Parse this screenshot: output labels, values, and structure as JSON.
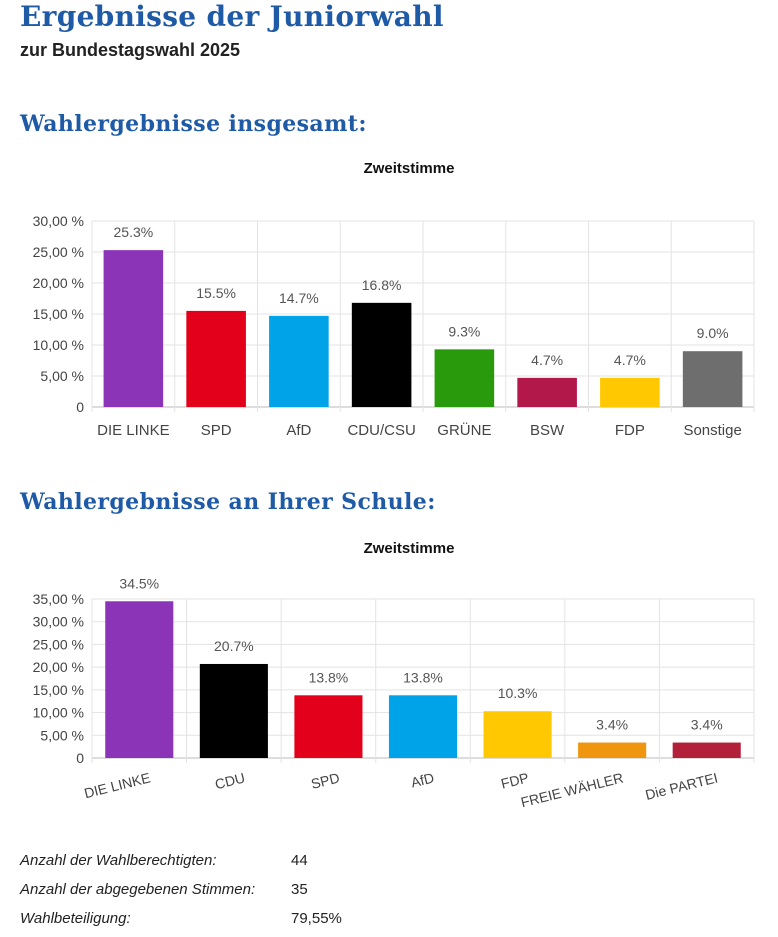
{
  "title": "Ergebnisse der Juniorwahl",
  "subtitle": "zur Bundestagswahl 2025",
  "sections": [
    {
      "heading": "Wahlergebnisse insgesamt:"
    },
    {
      "heading": "Wahlergebnisse an Ihrer Schule:"
    }
  ],
  "chart_data": [
    {
      "type": "bar",
      "title": "Zweitstimme",
      "categories": [
        "DIE LINKE",
        "SPD",
        "AfD",
        "CDU/CSU",
        "GRÜNE",
        "BSW",
        "FDP",
        "Sonstige"
      ],
      "values": [
        25.3,
        15.5,
        14.7,
        16.8,
        9.3,
        4.7,
        4.7,
        9.0
      ],
      "value_labels": [
        "25.3%",
        "15.5%",
        "14.7%",
        "16.8%",
        "9.3%",
        "4.7%",
        "4.7%",
        "9.0%"
      ],
      "colors": [
        "#8b34b8",
        "#e3001b",
        "#00a2e8",
        "#000000",
        "#2a9a0d",
        "#b3184a",
        "#ffc800",
        "#6e6e6e"
      ],
      "yticks": [
        0,
        5,
        10,
        15,
        20,
        25,
        30
      ],
      "ytick_labels": [
        "0",
        "5,00 %",
        "10,00 %",
        "15,00 %",
        "20,00 %",
        "25,00 %",
        "30,00 %"
      ],
      "ylim": [
        0,
        30
      ],
      "grid": true,
      "xlabels_rotated": false
    },
    {
      "type": "bar",
      "title": "Zweitstimme",
      "categories": [
        "DIE LINKE",
        "CDU",
        "SPD",
        "AfD",
        "FDP",
        "FREIE WÄHLER",
        "Die PARTEI"
      ],
      "values": [
        34.5,
        20.7,
        13.8,
        13.8,
        10.3,
        3.4,
        3.4
      ],
      "value_labels": [
        "34.5%",
        "20.7%",
        "13.8%",
        "13.8%",
        "10.3%",
        "3.4%",
        "3.4%"
      ],
      "colors": [
        "#8b34b8",
        "#000000",
        "#e3001b",
        "#00a2e8",
        "#ffc800",
        "#f0960e",
        "#b3203a"
      ],
      "yticks": [
        0,
        5,
        10,
        15,
        20,
        25,
        30,
        35
      ],
      "ytick_labels": [
        "0",
        "5,00 %",
        "10,00 %",
        "15,00 %",
        "20,00 %",
        "25,00 %",
        "30,00 %",
        "35,00 %"
      ],
      "ylim": [
        0,
        35
      ],
      "grid": true,
      "xlabels_rotated": true
    }
  ],
  "stats": [
    {
      "label": "Anzahl der Wahlberechtigten:",
      "value": "44"
    },
    {
      "label": "Anzahl der abgegebenen Stimmen:",
      "value": "35"
    },
    {
      "label": "Wahlbeteiligung:",
      "value": "79,55%"
    }
  ]
}
